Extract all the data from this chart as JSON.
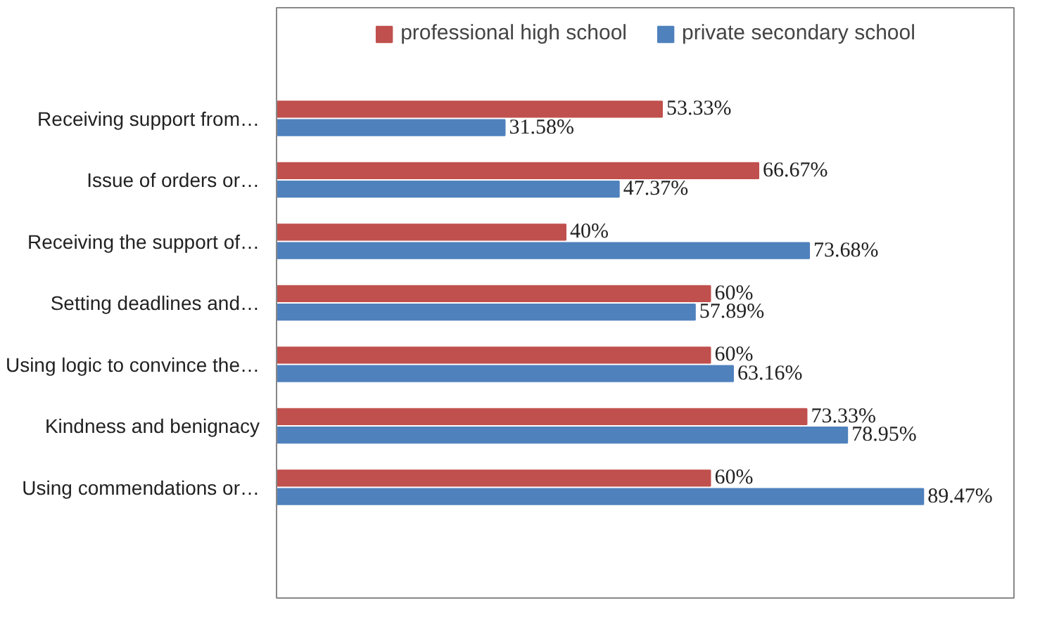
{
  "chart_data": {
    "type": "bar",
    "orientation": "horizontal",
    "categories": [
      "Receiving support from…",
      "Issue of orders or…",
      "Receiving the support of…",
      "Setting deadlines and…",
      "Using logic to convince the…",
      "Kindness and benignacy",
      "Using commendations or…"
    ],
    "series": [
      {
        "name": "professional high school",
        "color": "#c0504d",
        "values": [
          53.33,
          66.67,
          40,
          60,
          60,
          73.33,
          60
        ],
        "value_labels": [
          "53.33%",
          "66.67%",
          "40%",
          "60%",
          "60%",
          "73.33%",
          "60%"
        ]
      },
      {
        "name": "private secondary school",
        "color": "#4f81bd",
        "values": [
          31.58,
          47.37,
          73.68,
          57.89,
          63.16,
          78.95,
          89.47
        ],
        "value_labels": [
          "31.58%",
          "47.37%",
          "73.68%",
          "57.89%",
          "63.16%",
          "78.95%",
          "89.47%"
        ]
      }
    ],
    "legend": "top",
    "grid": false,
    "tick_labels": "y"
  }
}
